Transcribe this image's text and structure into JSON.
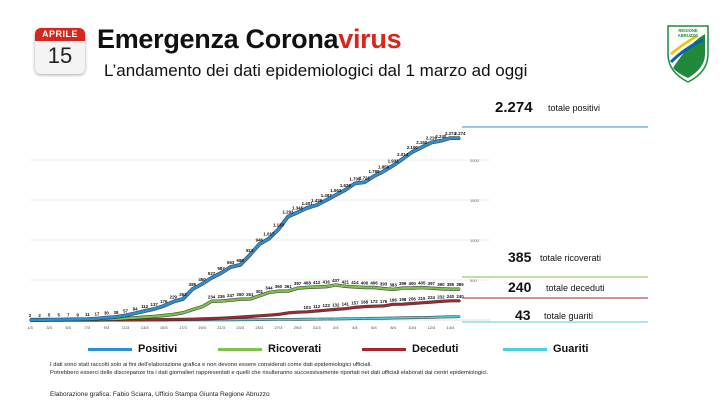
{
  "header": {
    "calendar_month": "APRILE",
    "calendar_day": "15",
    "title_main": "Emergenza Corona",
    "title_accent": "virus",
    "subtitle": "L’andamento dei dati epidemiologici dal 1 marzo ad oggi"
  },
  "logo": {
    "text_lines": [
      "REGIONE",
      "ABRUZZO"
    ],
    "colors": [
      "#1f8a3b",
      "#0a5fae",
      "#f2c200"
    ]
  },
  "summary": [
    {
      "value": "2.274",
      "label": "totale positivi",
      "color": "#2a8fd6"
    },
    {
      "value": "385",
      "label": "totale ricoverati",
      "color": "#7cc24b"
    },
    {
      "value": "240",
      "label": "totale deceduti",
      "color": "#a8262b"
    },
    {
      "value": "43",
      "label": "totale guariti",
      "color": "#4fd0df"
    }
  ],
  "legend": [
    {
      "label": "Positivi",
      "color": "#2a8fd6"
    },
    {
      "label": "Ricoverati",
      "color": "#7cc24b"
    },
    {
      "label": "Deceduti",
      "color": "#a8262b"
    },
    {
      "label": "Guariti",
      "color": "#4fd0df"
    }
  ],
  "notes": [
    "I dati sono stati raccolti solo ai fini dell’elaborazione grafica e non devono essere considerati come dati epidemiologici ufficiali.",
    "Potrebbero esserci delle discrepanze tra i dati giornalieri rappresentati e quelli che risulteranno successivamente riportati nei dati ufficiali elaborati dai centri epidemiologici."
  ],
  "credit": "Elaborazione grafica: Fabio Sciarra, Ufficio Stampa Giunta Regione Abruzzo",
  "chart_data": {
    "type": "line",
    "ylim": [
      0,
      2500
    ],
    "yticks": [
      500,
      1000,
      1500,
      2000
    ],
    "grid": true,
    "x": [
      "1/3",
      "2/3",
      "3/3",
      "4/3",
      "5/3",
      "6/3",
      "7/3",
      "8/3",
      "9/3",
      "10/3",
      "11/3",
      "12/3",
      "13/3",
      "14/3",
      "15/3",
      "16/3",
      "17/3",
      "18/3",
      "19/3",
      "20/3",
      "21/3",
      "22/3",
      "23/3",
      "24/3",
      "25/3",
      "26/3",
      "27/3",
      "28/3",
      "29/3",
      "30/3",
      "31/3",
      "1/4",
      "2/4",
      "3/4",
      "4/4",
      "5/4",
      "6/4",
      "7/4",
      "8/4",
      "9/4",
      "10/4",
      "11/4",
      "12/4",
      "13/4",
      "14/4",
      "15/4"
    ],
    "x_tick_labels": [
      "1/3",
      "3/3",
      "5/3",
      "7/3",
      "9/3",
      "11/3",
      "13/3",
      "15/3",
      "17/3",
      "19/3",
      "21/3",
      "23/3",
      "25/3",
      "27/3",
      "29/3",
      "31/3",
      "2/4",
      "4/4",
      "6/4",
      "8/4",
      "10/4",
      "12/4",
      "14/4"
    ],
    "series": [
      {
        "name": "Positivi",
        "color": "#2a8fd6",
        "values": [
          2,
          2,
          5,
          5,
          7,
          9,
          11,
          17,
          30,
          38,
          57,
          84,
          112,
          137,
          176,
          229,
          263,
          385,
          450,
          527,
          587,
          663,
          689,
          813,
          946,
          1017,
          1133,
          1293,
          1345,
          1401,
          1436,
          1497,
          1563,
          1626,
          1708,
          1721,
          1799,
          1859,
          1931,
          2014,
          2100,
          2160,
          2219,
          2240,
          2274,
          2274
        ],
        "labels": [
          "2",
          "2",
          "5",
          "5",
          "7",
          "9",
          "11",
          "17",
          "30",
          "38",
          "57",
          "84",
          "112",
          "137",
          "176",
          "229",
          "263",
          "385",
          "450",
          "527",
          "587",
          "663",
          "689",
          "813",
          "946",
          "1.017",
          "1.133",
          "1.293",
          "1.345",
          "1.401",
          "1.436",
          "1.497",
          "1.563",
          "1.626",
          "1.708",
          "1.721",
          "1.799",
          "1.859",
          "1.931",
          "2.014",
          "2.100",
          "2.160",
          "2.219",
          "2.240",
          "2.274",
          "2.274"
        ]
      },
      {
        "name": "Ricoverati",
        "color": "#7cc24b",
        "values": [
          0,
          0,
          1,
          1,
          2,
          3,
          4,
          6,
          10,
          13,
          20,
          28,
          36,
          45,
          56,
          70,
          90,
          130,
          165,
          234,
          236,
          247,
          260,
          261,
          301,
          344,
          360,
          361,
          397,
          408,
          412,
          416,
          437,
          421,
          414,
          406,
          406,
          393,
          383,
          399,
          400,
          405,
          397,
          390,
          385,
          385
        ],
        "labels": [
          "",
          "",
          "",
          "",
          "",
          "",
          "",
          "",
          "",
          "",
          "",
          "",
          "",
          "",
          "",
          "",
          "",
          "",
          "",
          "234",
          "236",
          "247",
          "260",
          "261",
          "301",
          "344",
          "360",
          "361",
          "397",
          "408",
          "412",
          "416",
          "437",
          "421",
          "414",
          "406",
          "406",
          "393",
          "383",
          "399",
          "400",
          "405",
          "397",
          "390",
          "385",
          "385"
        ]
      },
      {
        "name": "Deceduti",
        "color": "#a8262b",
        "values": [
          0,
          0,
          0,
          0,
          0,
          0,
          0,
          0,
          1,
          1,
          1,
          2,
          3,
          4,
          5,
          6,
          8,
          10,
          15,
          18,
          22,
          29,
          36,
          44,
          52,
          60,
          70,
          89,
          98,
          103,
          112,
          123,
          132,
          141,
          157,
          168,
          172,
          176,
          196,
          198,
          206,
          215,
          224,
          232,
          240,
          240
        ],
        "labels": [
          "",
          "",
          "",
          "",
          "",
          "",
          "",
          "",
          "",
          "",
          "",
          "",
          "",
          "",
          "",
          "",
          "",
          "",
          "",
          "",
          "",
          "",
          "",
          "",
          "",
          "",
          "",
          "",
          "",
          "103",
          "112",
          "123",
          "132",
          "141",
          "157",
          "168",
          "172",
          "176",
          "196",
          "198",
          "206",
          "215",
          "224",
          "232",
          "240",
          "240"
        ]
      },
      {
        "name": "Guariti",
        "color": "#4fd0df",
        "values": [
          0,
          0,
          0,
          0,
          0,
          0,
          0,
          0,
          0,
          0,
          0,
          0,
          0,
          0,
          0,
          1,
          1,
          1,
          2,
          2,
          3,
          3,
          4,
          4,
          5,
          6,
          7,
          8,
          9,
          10,
          11,
          12,
          13,
          15,
          17,
          19,
          21,
          23,
          25,
          27,
          29,
          31,
          34,
          37,
          40,
          43
        ],
        "labels": []
      }
    ]
  }
}
